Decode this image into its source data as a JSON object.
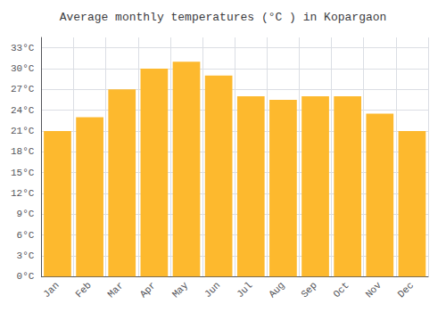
{
  "chart_data": {
    "type": "bar",
    "title": "Average monthly temperatures (°C ) in Kopargaon",
    "categories": [
      "Jan",
      "Feb",
      "Mar",
      "Apr",
      "May",
      "Jun",
      "Jul",
      "Aug",
      "Sep",
      "Oct",
      "Nov",
      "Dec"
    ],
    "values": [
      21,
      23,
      27,
      30,
      31,
      29,
      26,
      25.5,
      26,
      26,
      23.5,
      21
    ],
    "color": "#FDB92E",
    "ylim": [
      0,
      34.5
    ],
    "yticks": [
      {
        "value": 0,
        "label": "0°C"
      },
      {
        "value": 3,
        "label": "3°C"
      },
      {
        "value": 6,
        "label": "6°C"
      },
      {
        "value": 9,
        "label": "9°C"
      },
      {
        "value": 12,
        "label": "12°C"
      },
      {
        "value": 15,
        "label": "15°C"
      },
      {
        "value": 18,
        "label": "18°C"
      },
      {
        "value": 21,
        "label": "21°C"
      },
      {
        "value": 24,
        "label": "24°C"
      },
      {
        "value": 27,
        "label": "27°C"
      },
      {
        "value": 30,
        "label": "30°C"
      },
      {
        "value": 33,
        "label": "33°C"
      }
    ],
    "grid": true
  }
}
